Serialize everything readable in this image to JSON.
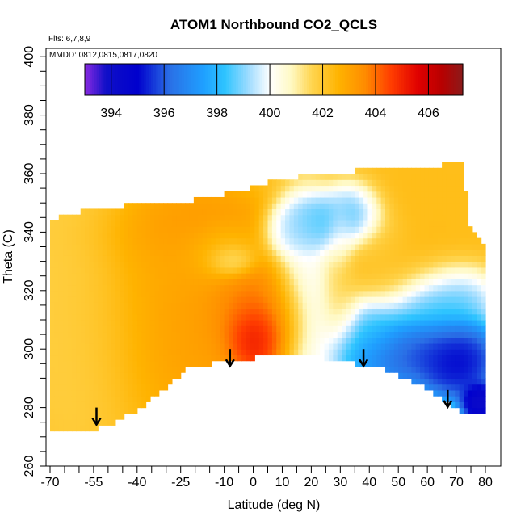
{
  "chart_data": {
    "type": "heatmap",
    "title": "ATOM1 Northbound CO2_QCLS",
    "flights_note": "Flts: 6,7,8,9",
    "dates_note": "MMDD: 0812,0815,0817,0820",
    "xlabel": "Latitude (deg N)",
    "ylabel": "Theta (C)",
    "xlim": [
      -70,
      80
    ],
    "ylim": [
      260,
      400
    ],
    "x_ticks": [
      -70,
      -55,
      -40,
      -25,
      -10,
      0,
      10,
      20,
      30,
      40,
      50,
      60,
      70,
      80
    ],
    "y_ticks": [
      260,
      280,
      300,
      320,
      340,
      360,
      380,
      400
    ],
    "colorbar": {
      "range": [
        393,
        407.3
      ],
      "ticks": [
        394,
        396,
        398,
        400,
        402,
        404,
        406
      ],
      "stops": [
        {
          "value": 393.0,
          "color": "#8a2be2"
        },
        {
          "value": 393.8,
          "color": "#1010c8"
        },
        {
          "value": 395.0,
          "color": "#0000cd"
        },
        {
          "value": 396.2,
          "color": "#2a6fe6"
        },
        {
          "value": 397.5,
          "color": "#1fa0ff"
        },
        {
          "value": 398.3,
          "color": "#2ec4ff"
        },
        {
          "value": 399.2,
          "color": "#9fdcff"
        },
        {
          "value": 400.0,
          "color": "#ffffff"
        },
        {
          "value": 400.8,
          "color": "#fff9c4"
        },
        {
          "value": 401.6,
          "color": "#ffd54f"
        },
        {
          "value": 402.6,
          "color": "#ffb300"
        },
        {
          "value": 403.6,
          "color": "#ff8c00"
        },
        {
          "value": 404.6,
          "color": "#ff3c00"
        },
        {
          "value": 405.6,
          "color": "#e00000"
        },
        {
          "value": 406.5,
          "color": "#b80000"
        },
        {
          "value": 407.3,
          "color": "#8b1a1a"
        }
      ]
    },
    "domain": {
      "top": [
        [
          -70,
          344
        ],
        [
          -55,
          348
        ],
        [
          -45,
          349
        ],
        [
          -35,
          350
        ],
        [
          -25,
          350
        ],
        [
          -15,
          352
        ],
        [
          -5,
          354
        ],
        [
          5,
          357
        ],
        [
          15,
          359
        ],
        [
          25,
          360
        ],
        [
          35,
          361
        ],
        [
          45,
          361
        ],
        [
          55,
          362
        ],
        [
          65,
          363
        ],
        [
          72,
          364
        ],
        [
          75,
          340
        ],
        [
          80,
          336
        ]
      ],
      "bottom": [
        [
          -70,
          272
        ],
        [
          -57,
          272
        ],
        [
          -50,
          274
        ],
        [
          -40,
          279
        ],
        [
          -30,
          287
        ],
        [
          -23,
          293
        ],
        [
          -15,
          295
        ],
        [
          -5,
          296
        ],
        [
          5,
          298
        ],
        [
          10,
          299
        ],
        [
          20,
          298
        ],
        [
          35,
          295
        ],
        [
          45,
          293
        ],
        [
          55,
          289
        ],
        [
          65,
          283
        ],
        [
          72,
          278
        ],
        [
          80,
          277
        ]
      ]
    },
    "features": [
      {
        "lat": -58,
        "theta": 325,
        "rx": 16,
        "ry": 40,
        "value": 401.5
      },
      {
        "lat": -40,
        "theta": 322,
        "rx": 22,
        "ry": 32,
        "value": 402.8
      },
      {
        "lat": -22,
        "theta": 315,
        "rx": 15,
        "ry": 25,
        "value": 403.3
      },
      {
        "lat": -25,
        "theta": 340,
        "rx": 22,
        "ry": 10,
        "value": 403.5
      },
      {
        "lat": -30,
        "theta": 330,
        "rx": 14,
        "ry": 12,
        "value": 402.8
      },
      {
        "lat": -12,
        "theta": 333,
        "rx": 10,
        "ry": 8,
        "value": 401.4
      },
      {
        "lat": -8,
        "theta": 330,
        "rx": 6,
        "ry": 4,
        "value": 400.3
      },
      {
        "lat": -4,
        "theta": 318,
        "rx": 10,
        "ry": 10,
        "value": 403.8
      },
      {
        "lat": 2,
        "theta": 308,
        "rx": 12,
        "ry": 12,
        "value": 404.8
      },
      {
        "lat": 2,
        "theta": 305,
        "rx": 7,
        "ry": 8,
        "value": 406.2
      },
      {
        "lat": 9,
        "theta": 312,
        "rx": 8,
        "ry": 14,
        "value": 403.0
      },
      {
        "lat": 18,
        "theta": 315,
        "rx": 8,
        "ry": 26,
        "value": 399.6
      },
      {
        "lat": 15,
        "theta": 340,
        "rx": 8,
        "ry": 7,
        "value": 399.0
      },
      {
        "lat": 22,
        "theta": 343,
        "rx": 8,
        "ry": 7,
        "value": 398.0
      },
      {
        "lat": 30,
        "theta": 338,
        "rx": 4,
        "ry": 9,
        "value": 400.3
      },
      {
        "lat": 35,
        "theta": 345,
        "rx": 8,
        "ry": 8,
        "value": 397.8
      },
      {
        "lat": 30,
        "theta": 317,
        "rx": 6,
        "ry": 12,
        "value": 401.6
      },
      {
        "lat": 44,
        "theta": 332,
        "rx": 9,
        "ry": 12,
        "value": 401.8
      },
      {
        "lat": 62,
        "theta": 350,
        "rx": 20,
        "ry": 12,
        "value": 402.3
      },
      {
        "lat": 50,
        "theta": 328,
        "rx": 16,
        "ry": 10,
        "value": 402.5
      },
      {
        "lat": 62,
        "theta": 316,
        "rx": 14,
        "ry": 10,
        "value": 398.0
      },
      {
        "lat": 40,
        "theta": 306,
        "rx": 10,
        "ry": 10,
        "value": 398.3
      },
      {
        "lat": 55,
        "theta": 299,
        "rx": 18,
        "ry": 9,
        "value": 395.2
      },
      {
        "lat": 70,
        "theta": 296,
        "rx": 10,
        "ry": 10,
        "value": 394.3
      },
      {
        "lat": 78,
        "theta": 282,
        "rx": 5,
        "ry": 5,
        "value": 393.3
      }
    ],
    "background_value": 402.2,
    "arrows": [
      {
        "lat": -54,
        "theta": 280
      },
      {
        "lat": -8,
        "theta": 300
      },
      {
        "lat": 38,
        "theta": 300
      },
      {
        "lat": 67,
        "theta": 286
      }
    ]
  }
}
